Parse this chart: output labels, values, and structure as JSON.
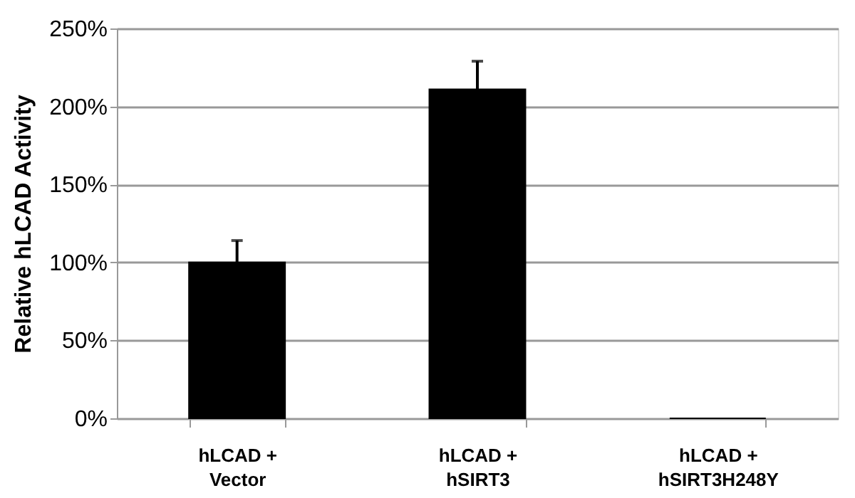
{
  "chart_data": {
    "type": "bar",
    "ylabel": "Relative hLCAD Activity",
    "categories": [
      "hLCAD + Vector",
      "hLCAD + hSIRT3",
      "hLCAD + hSIRT3H248Y"
    ],
    "values": [
      100,
      211,
      0
    ],
    "color": "#000000",
    "errors": [
      [
        100,
        114
      ],
      [
        211,
        229
      ],
      null
    ],
    "ylim": [
      0,
      250
    ],
    "yticks": [
      {
        "value": 0,
        "label": "0%"
      },
      {
        "value": 50,
        "label": "50%"
      },
      {
        "value": 100,
        "label": "100%"
      },
      {
        "value": 150,
        "label": "150%"
      },
      {
        "value": 200,
        "label": "200%"
      },
      {
        "value": 250,
        "label": "250%"
      }
    ],
    "grid": "y"
  }
}
